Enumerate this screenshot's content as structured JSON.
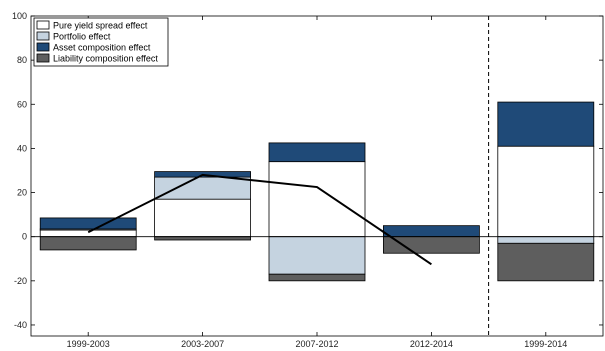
{
  "chart_data": {
    "type": "bar",
    "stacked": true,
    "categories": [
      "1999-2003",
      "2003-2007",
      "2007-2012",
      "2012-2014",
      "1999-2014"
    ],
    "series": [
      {
        "name": "Pure yield spread effect",
        "color": "#ffffff",
        "values": [
          3,
          17,
          34,
          0,
          41
        ]
      },
      {
        "name": "Portfolio effect",
        "color": "#c5d3e0",
        "values": [
          0.5,
          10,
          -17,
          0,
          -3
        ]
      },
      {
        "name": "Asset composition effect",
        "color": "#1f4a78",
        "values": [
          5,
          2.5,
          8.5,
          5,
          20
        ]
      },
      {
        "name": "Liability composition effect",
        "color": "#5e5e5e",
        "values": [
          -6,
          -1.5,
          -3,
          -7.5,
          -17
        ]
      }
    ],
    "line_values": [
      2,
      28,
      22.5,
      -12.5,
      null
    ],
    "ylim": [
      -45,
      100
    ],
    "yticks": [
      -40,
      -20,
      0,
      20,
      40,
      60,
      80,
      100
    ],
    "legend_position": "top-left",
    "separator_before_category": 4,
    "title": "",
    "xlabel": "",
    "ylabel": ""
  }
}
